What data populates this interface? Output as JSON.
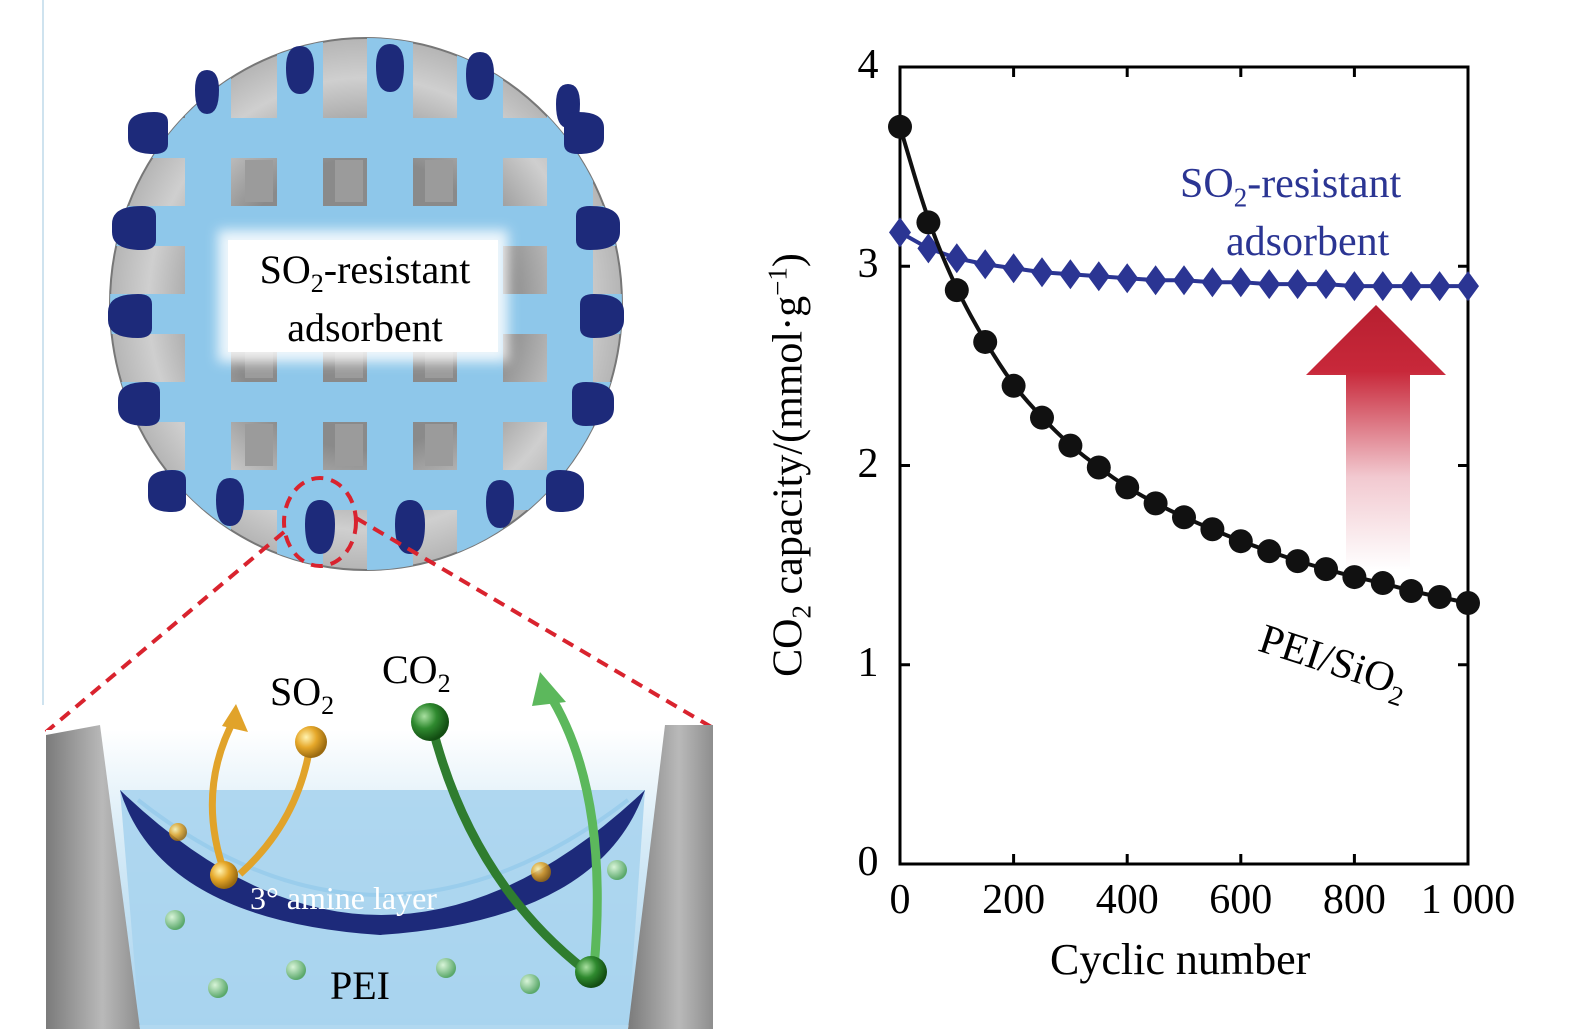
{
  "schematic": {
    "particle_label_line1": "SO",
    "particle_label_sub": "2",
    "particle_label_line1_suffix": "-resistant",
    "particle_label_line2": "adsorbent",
    "so2_gas": "SO",
    "so2_sub": "2",
    "co2_gas": "CO",
    "co2_sub": "2",
    "amine_layer": "3° amine layer",
    "pei": "PEI",
    "colors": {
      "pore_blue": "#8ec7ea",
      "amine_navy": "#1d2a7a",
      "frame_gray": "#9a9a9a",
      "zoom_red": "#d9232e",
      "so2_gold": "#e1a32a",
      "co2_green": "#2f7d2f"
    }
  },
  "chart_data": {
    "type": "line",
    "xlabel": "Cyclic number",
    "ylabel_pre": "CO",
    "ylabel_sub": "2",
    "ylabel_post": " capacity/(mmol·g",
    "ylabel_sup": "−1",
    "ylabel_end": ")",
    "xlim": [
      0,
      1000
    ],
    "ylim": [
      0,
      4
    ],
    "xticks": [
      0,
      200,
      400,
      600,
      800,
      1000
    ],
    "xtick_labels": [
      "0",
      "200",
      "400",
      "600",
      "800",
      "1 000"
    ],
    "yticks": [
      0,
      1,
      2,
      3,
      4
    ],
    "ytick_labels": [
      "0",
      "1",
      "2",
      "3",
      "4"
    ],
    "grid": false,
    "series": [
      {
        "name": "SO2-resistant adsorbent",
        "label_line1": "SO",
        "label_sub": "2",
        "label_suffix": "-resistant",
        "label_line2": "adsorbent",
        "marker": "diamond",
        "color": "#2b3593",
        "x": [
          0,
          50,
          100,
          150,
          200,
          250,
          300,
          350,
          400,
          450,
          500,
          550,
          600,
          650,
          700,
          750,
          800,
          850,
          900,
          950,
          1000
        ],
        "y": [
          3.17,
          3.09,
          3.04,
          3.01,
          2.99,
          2.97,
          2.96,
          2.95,
          2.94,
          2.93,
          2.93,
          2.92,
          2.92,
          2.91,
          2.91,
          2.91,
          2.9,
          2.9,
          2.9,
          2.9,
          2.9
        ]
      },
      {
        "name": "PEI/SiO2",
        "label_pre": "PEI/SiO",
        "label_sub": "2",
        "marker": "circle",
        "color": "#111111",
        "x": [
          0,
          50,
          100,
          150,
          200,
          250,
          300,
          350,
          400,
          450,
          500,
          550,
          600,
          650,
          700,
          750,
          800,
          850,
          900,
          950,
          1000
        ],
        "y": [
          3.7,
          3.22,
          2.88,
          2.62,
          2.4,
          2.24,
          2.1,
          1.99,
          1.89,
          1.81,
          1.74,
          1.68,
          1.62,
          1.57,
          1.52,
          1.48,
          1.44,
          1.41,
          1.37,
          1.34,
          1.31
        ]
      }
    ],
    "arrow_color": "#c8283a"
  }
}
